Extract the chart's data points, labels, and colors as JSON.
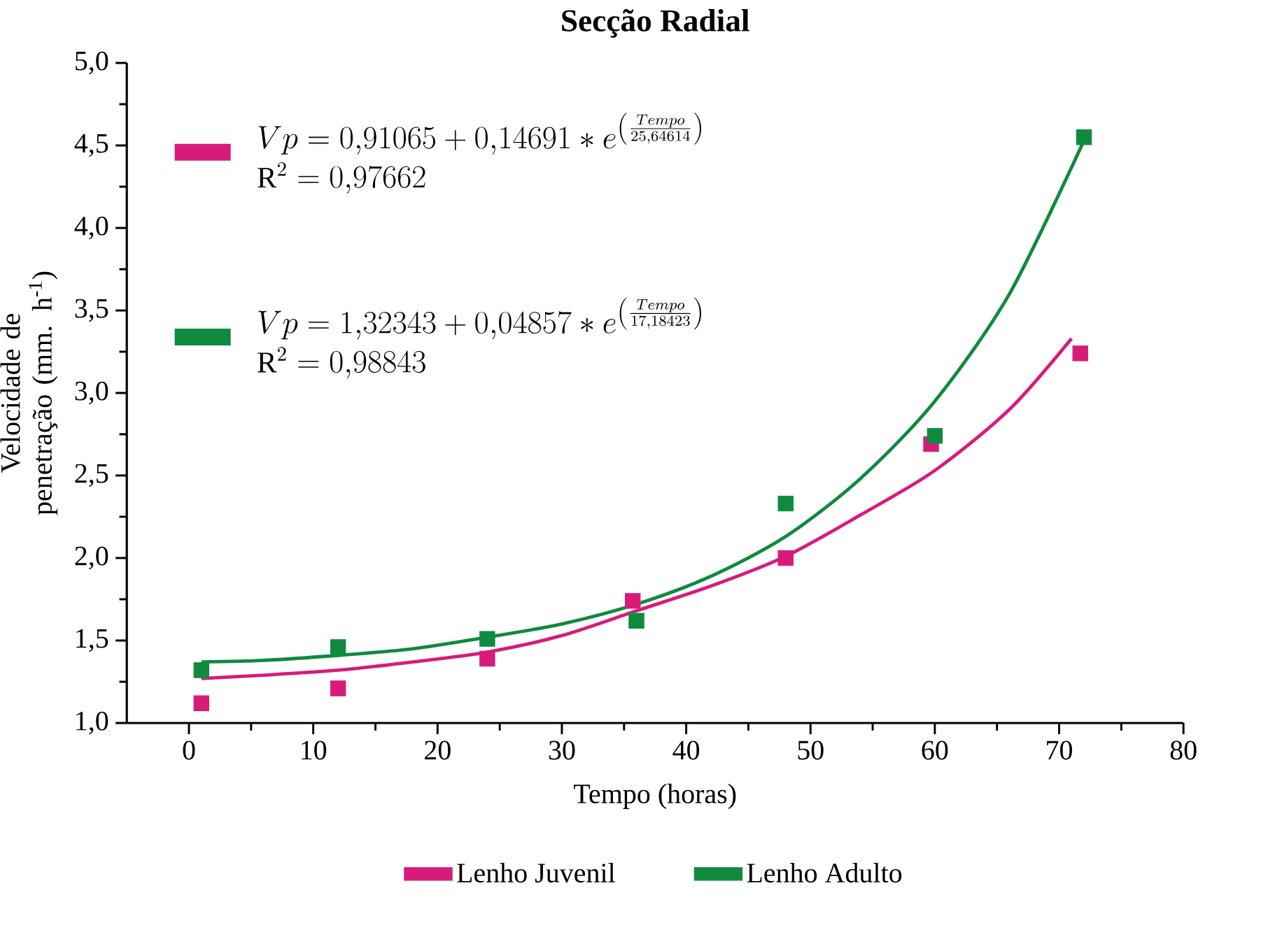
{
  "chart_data": {
    "type": "scatter",
    "title": "Secção Radial",
    "xlabel": "Tempo (horas)",
    "ylabel": "Velocidade de penetração (mm. h$^{-1}$)",
    "xlim": [
      -5,
      80
    ],
    "xticks": [
      0,
      10,
      20,
      30,
      40,
      50,
      60,
      70,
      80
    ],
    "ylim": [
      1,
      5
    ],
    "yticks": [
      {
        "value": 1,
        "label": "1,0"
      },
      {
        "value": 1.5,
        "label": "1,5"
      },
      {
        "value": 2,
        "label": "2,0"
      },
      {
        "value": 2.5,
        "label": "2,5"
      },
      {
        "value": 3,
        "label": "3,0"
      },
      {
        "value": 3.5,
        "label": "3,5"
      },
      {
        "value": 4,
        "label": "4,0"
      },
      {
        "value": 4.5,
        "label": "4,5"
      },
      {
        "value": 5,
        "label": "5,0"
      }
    ],
    "legend": "bottom",
    "grid": false,
    "annotations": [
      "Vp=0{,}91065+0{,}14691*e^{\\left(\\frac{Tempo}{25{,}64614}\\right)}",
      "\\mathrm{R}^{2}=0{,}97662",
      "Vp=1{,}32343+0{,}04857*e^{\\left(\\frac{Tempo}{17{,}18423}\\right)}",
      "\\mathrm{R}^{2}=0{,}98843"
    ],
    "series": [
      {
        "name": "Lenho Juvenil",
        "marker": "square",
        "color": "#d81b7b",
        "x": [
          1,
          12,
          24,
          35.7,
          48,
          59.7,
          71.7
        ],
        "values": [
          1.12,
          1.21,
          1.39,
          1.74,
          2.0,
          2.69,
          3.24
        ]
      },
      {
        "name": "Lenho Adulto",
        "marker": "square",
        "color": "#0f8a3e",
        "x": [
          1,
          12,
          24,
          36,
          48,
          60,
          72
        ],
        "values": [
          1.32,
          1.46,
          1.51,
          1.62,
          2.33,
          2.74,
          4.55
        ]
      },
      {
        "type": "line",
        "marker": "none",
        "color": "#d81b7b",
        "x": [
          1,
          6,
          12,
          18,
          24,
          30,
          36,
          42,
          48,
          54,
          60,
          66,
          71
        ],
        "values": [
          1.27,
          1.29,
          1.32,
          1.37,
          1.43,
          1.53,
          1.68,
          1.83,
          2.01,
          2.26,
          2.53,
          2.9,
          3.33
        ]
      },
      {
        "type": "line",
        "marker": "none",
        "color": "#0f8a3e",
        "x": [
          1,
          6,
          12,
          18,
          24,
          30,
          36,
          42,
          48,
          54,
          60,
          66,
          72
        ],
        "values": [
          1.37,
          1.38,
          1.41,
          1.45,
          1.52,
          1.6,
          1.72,
          1.89,
          2.13,
          2.48,
          2.95,
          3.6,
          4.53
        ]
      }
    ]
  }
}
